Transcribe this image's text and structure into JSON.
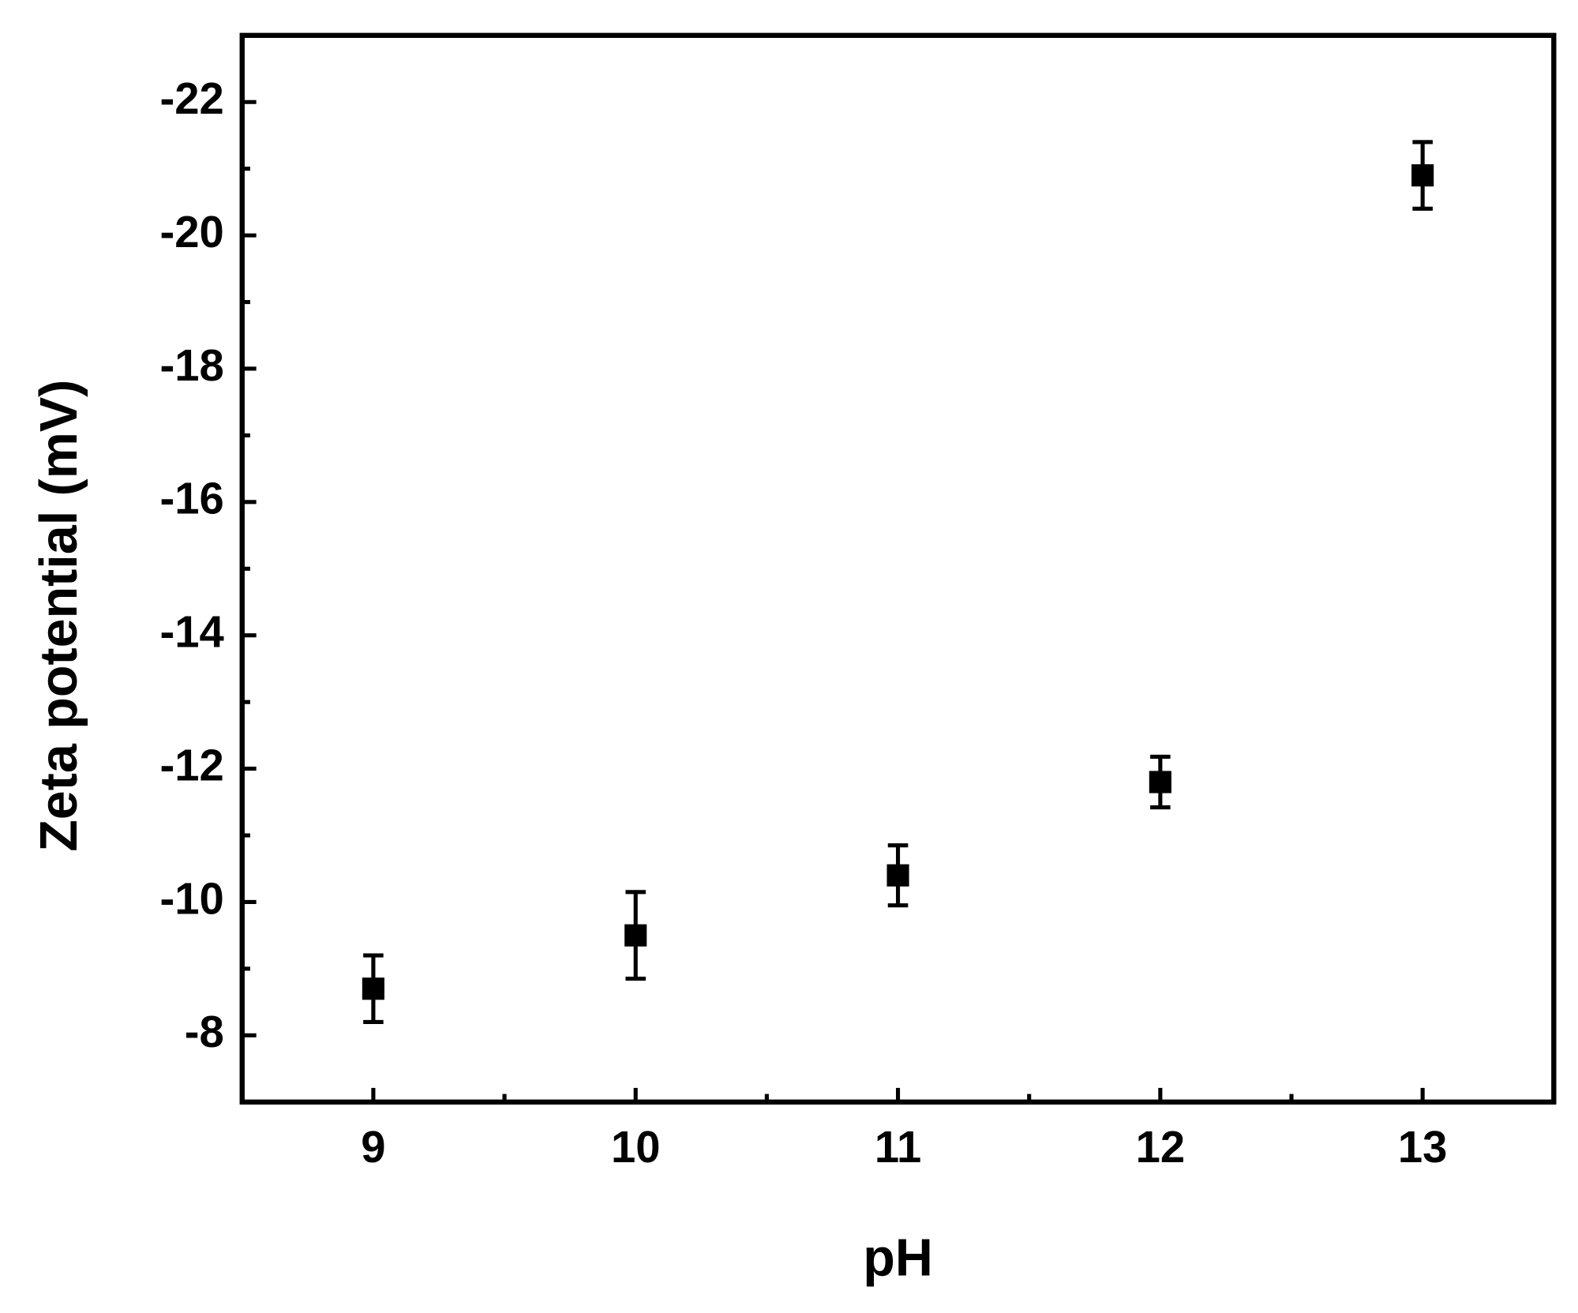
{
  "chart_data": {
    "type": "scatter",
    "x_label": "pH",
    "y_label": "Zeta potential (mV)",
    "x": [
      9,
      10,
      11,
      12,
      13
    ],
    "series": [
      {
        "color": "#000000",
        "values": [
          -8.7,
          -9.5,
          -10.4,
          -11.8,
          -20.9
        ],
        "errors": [
          0.5,
          0.65,
          0.45,
          0.38,
          0.5
        ]
      }
    ],
    "xlim": [
      8.5,
      13.5
    ],
    "xticks": [
      9,
      10,
      11,
      12,
      13
    ],
    "ylim": [
      -7,
      -23
    ],
    "yticks": [
      -8,
      -10,
      -12,
      -14,
      -16,
      -18,
      -20,
      -22
    ]
  }
}
